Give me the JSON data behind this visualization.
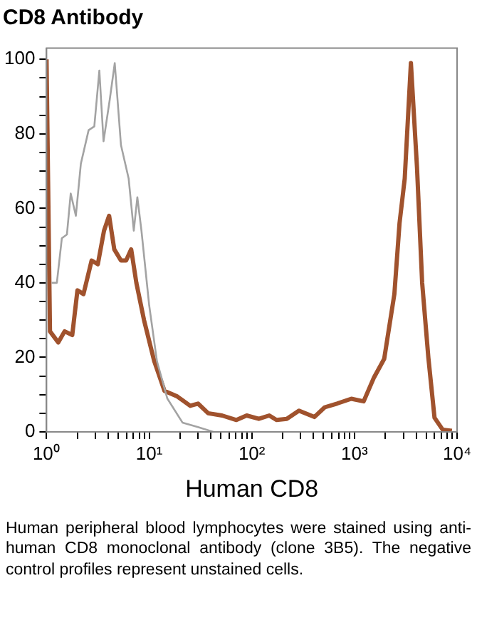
{
  "chart_data": {
    "type": "line",
    "title": "CD8 Antibody",
    "xlabel": "Human CD8",
    "annotations": [
      "Human peripheral blood lymphocytes were stained using anti-human CD8 monoclonal antibody (clone 3B5). The negative control profiles represent unstained cells."
    ],
    "log": "x",
    "grid": false,
    "legend": false,
    "marker": "none",
    "line_style": "solid",
    "xlim": [
      1,
      10000
    ],
    "xticks": [
      {
        "value": 1,
        "label": "10⁰"
      },
      {
        "value": 2,
        "label": null
      },
      {
        "value": 3,
        "label": null
      },
      {
        "value": 4,
        "label": null
      },
      {
        "value": 5,
        "label": null
      },
      {
        "value": 6,
        "label": null
      },
      {
        "value": 7,
        "label": null
      },
      {
        "value": 8,
        "label": null
      },
      {
        "value": 9,
        "label": null
      },
      {
        "value": 10,
        "label": "10¹"
      },
      {
        "value": 20,
        "label": null
      },
      {
        "value": 30,
        "label": null
      },
      {
        "value": 40,
        "label": null
      },
      {
        "value": 50,
        "label": null
      },
      {
        "value": 60,
        "label": null
      },
      {
        "value": 70,
        "label": null
      },
      {
        "value": 80,
        "label": null
      },
      {
        "value": 90,
        "label": null
      },
      {
        "value": 100,
        "label": "10²"
      },
      {
        "value": 200,
        "label": null
      },
      {
        "value": 300,
        "label": null
      },
      {
        "value": 400,
        "label": null
      },
      {
        "value": 500,
        "label": null
      },
      {
        "value": 600,
        "label": null
      },
      {
        "value": 700,
        "label": null
      },
      {
        "value": 800,
        "label": null
      },
      {
        "value": 900,
        "label": null
      },
      {
        "value": 1000,
        "label": "10³"
      },
      {
        "value": 2000,
        "label": null
      },
      {
        "value": 3000,
        "label": null
      },
      {
        "value": 4000,
        "label": null
      },
      {
        "value": 5000,
        "label": null
      },
      {
        "value": 6000,
        "label": null
      },
      {
        "value": 7000,
        "label": null
      },
      {
        "value": 8000,
        "label": null
      },
      {
        "value": 9000,
        "label": null
      },
      {
        "value": 10000,
        "label": "10⁴"
      }
    ],
    "ylim": [
      0,
      103
    ],
    "yticks": [
      0,
      {
        "value": 5,
        "label": null
      },
      {
        "value": 10,
        "label": null
      },
      {
        "value": 15,
        "label": null
      },
      20,
      {
        "value": 25,
        "label": null
      },
      {
        "value": 30,
        "label": null
      },
      {
        "value": 35,
        "label": null
      },
      40,
      {
        "value": 45,
        "label": null
      },
      {
        "value": 50,
        "label": null
      },
      {
        "value": 55,
        "label": null
      },
      60,
      {
        "value": 65,
        "label": null
      },
      {
        "value": 70,
        "label": null
      },
      {
        "value": 75,
        "label": null
      },
      80,
      {
        "value": 85,
        "label": null
      },
      {
        "value": 90,
        "label": null
      },
      {
        "value": 95,
        "label": null
      },
      100
    ],
    "series": [
      {
        "color": "#a3a3a3",
        "x": [
          1.12,
          1.26,
          1.41,
          1.58,
          1.72,
          1.93,
          2.16,
          2.57,
          2.92,
          3.27,
          3.59,
          4.12,
          4.62,
          5.31,
          6.31,
          7.08,
          7.67,
          8.41,
          10,
          11.9,
          15,
          21.1,
          29.9,
          42.2
        ],
        "values": [
          40,
          40,
          52,
          53,
          64,
          58,
          72,
          81,
          82,
          97,
          78,
          89,
          99,
          77,
          68,
          54,
          63,
          54,
          34,
          19,
          9,
          2.5,
          1.3,
          0
        ]
      },
      {
        "color": "#a0522d",
        "x": [
          1,
          1.08,
          1.3,
          1.5,
          1.78,
          2,
          2.29,
          2.75,
          3.16,
          3.63,
          4.07,
          4.57,
          5.31,
          5.96,
          6.68,
          7.5,
          8.91,
          11.2,
          14.1,
          18.8,
          25.1,
          29.9,
          37.6,
          51.3,
          70.8,
          89.1,
          117,
          148,
          174,
          219,
          288,
          407,
          513,
          676,
          933,
          1230,
          1550,
          1950,
          2450,
          2750,
          3090,
          3550,
          4070,
          4570,
          5250,
          6030,
          7240,
          8910
        ],
        "values": [
          100,
          27,
          24,
          27,
          26,
          38,
          37,
          46,
          45,
          54,
          58,
          49,
          46,
          46,
          49,
          40,
          30,
          19,
          11,
          9.5,
          7,
          7.6,
          5,
          4.4,
          3.2,
          4.4,
          3.5,
          4.4,
          3.2,
          3.5,
          5.7,
          4,
          6.6,
          7.6,
          8.9,
          8.2,
          14.6,
          19.6,
          37,
          56,
          68,
          99,
          71,
          40,
          20,
          3.8,
          0.6,
          0.3
        ]
      }
    ]
  }
}
